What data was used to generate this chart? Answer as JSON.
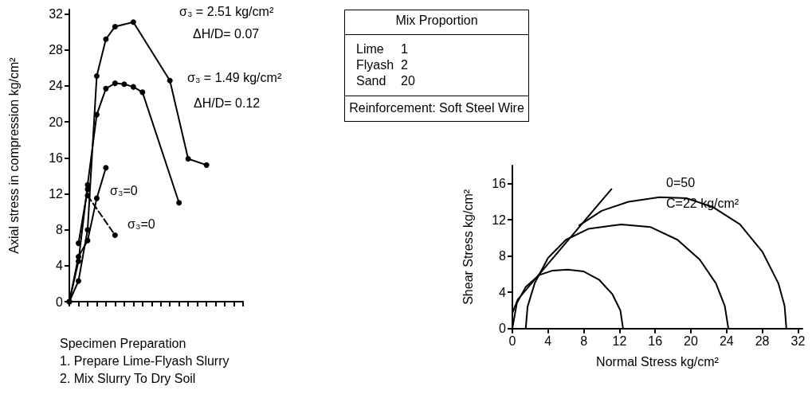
{
  "chart_data": [
    {
      "type": "line",
      "ylabel": "Axial stress in compression kg/cm²",
      "categories": [
        null,
        null,
        null,
        null,
        null,
        null,
        null,
        null,
        null,
        null,
        null,
        null,
        null,
        null,
        null,
        null,
        null,
        null,
        null,
        null
      ],
      "ylim": [
        0,
        32.5
      ],
      "yticks": [
        0,
        4,
        8,
        12,
        16,
        20,
        24,
        28,
        32
      ],
      "marker": "circle",
      "series": [
        {
          "color": "#000000",
          "values": [
            0,
            2.3,
            8,
            25.1,
            29.2,
            30.6,
            null,
            31.1,
            null,
            null,
            null,
            24.6,
            null,
            15.9,
            null,
            15.2,
            null,
            null,
            null,
            null
          ]
        },
        {
          "color": "#000000",
          "values": [
            0,
            4.5,
            13,
            20.8,
            23.7,
            24.3,
            24.2,
            23.9,
            23.3,
            null,
            null,
            null,
            11,
            null,
            null,
            null,
            null,
            null,
            null,
            null
          ]
        },
        {
          "color": "#000000",
          "values": [
            0,
            5,
            6.8,
            11.5,
            14.9,
            null,
            null,
            null,
            null,
            null,
            null,
            null,
            null,
            null,
            null,
            null,
            null,
            null,
            null,
            null
          ]
        },
        {
          "color": "#000000",
          "values": [
            null,
            6.5,
            12.5,
            null,
            null,
            null,
            null,
            null,
            null,
            null,
            null,
            null,
            null,
            null,
            null,
            null,
            null,
            null,
            null,
            null
          ]
        },
        {
          "color": "#000000",
          "line_style": "dashed",
          "values": [
            null,
            null,
            11.8,
            null,
            null,
            7.4,
            null,
            null,
            null,
            null,
            null,
            null,
            null,
            null,
            null,
            null,
            null,
            null,
            null,
            null
          ]
        }
      ],
      "annotations": [
        "σ₃ = 2.51 kg/cm²",
        "ΔH/D= 0.07",
        "σ₃ = 1.49 kg/cm²",
        "ΔH/D= 0.12",
        "σ₃=0",
        "σ₃=0",
        "Specimen Preparation",
        "1. Prepare Lime-Flyash Slurry",
        "2. Mix Slurry To Dry Soil"
      ]
    },
    {
      "type": "other",
      "title": "Mix Proportion",
      "annotations": [
        "Lime",
        "1",
        "Flyash",
        "2",
        "Sand",
        "20",
        "Reinforcement: Soft Steel Wire"
      ]
    },
    {
      "type": "line",
      "xlabel": "Normal Stress kg/cm²",
      "ylabel": "Shear Stress kg/cm²",
      "xlim": [
        0,
        32.5
      ],
      "xticks": [
        0,
        4,
        8,
        12,
        16,
        20,
        24,
        28,
        32
      ],
      "ylim": [
        0,
        18
      ],
      "yticks": [
        0,
        4,
        8,
        12,
        16
      ],
      "series": [
        {
          "color": "#000000",
          "x": [
            0,
            0.5,
            1.5,
            3,
            4.5,
            6.2,
            8,
            9.7,
            11.2,
            12.1,
            12.4
          ],
          "values": [
            0,
            2.8,
            4.6,
            5.9,
            6.4,
            6.5,
            6.3,
            5.4,
            3.8,
            2,
            0
          ]
        },
        {
          "color": "#000000",
          "x": [
            1.5,
            1.7,
            2.5,
            4,
            6,
            8.5,
            12.2,
            15.5,
            18.5,
            21,
            22.8,
            23.8,
            24.2
          ],
          "values": [
            0,
            2.4,
            5,
            7.8,
            9.8,
            11,
            11.5,
            11.2,
            9.8,
            7.6,
            5,
            2.5,
            0
          ]
        },
        {
          "color": "#000000",
          "x": [
            7.5,
            10,
            13,
            16.5,
            19.5,
            22.5,
            25.5,
            28,
            29.8,
            30.5,
            30.7
          ],
          "values": [
            11.4,
            13,
            14,
            14.5,
            14.4,
            13.4,
            11.5,
            8.5,
            5,
            2.5,
            0
          ]
        },
        {
          "color": "#000000",
          "x": [
            0,
            0.6,
            11.1
          ],
          "values": [
            1.7,
            3.2,
            15.4
          ]
        }
      ],
      "annotations": [
        "0=50",
        "C=22 kg/cm²"
      ]
    }
  ]
}
